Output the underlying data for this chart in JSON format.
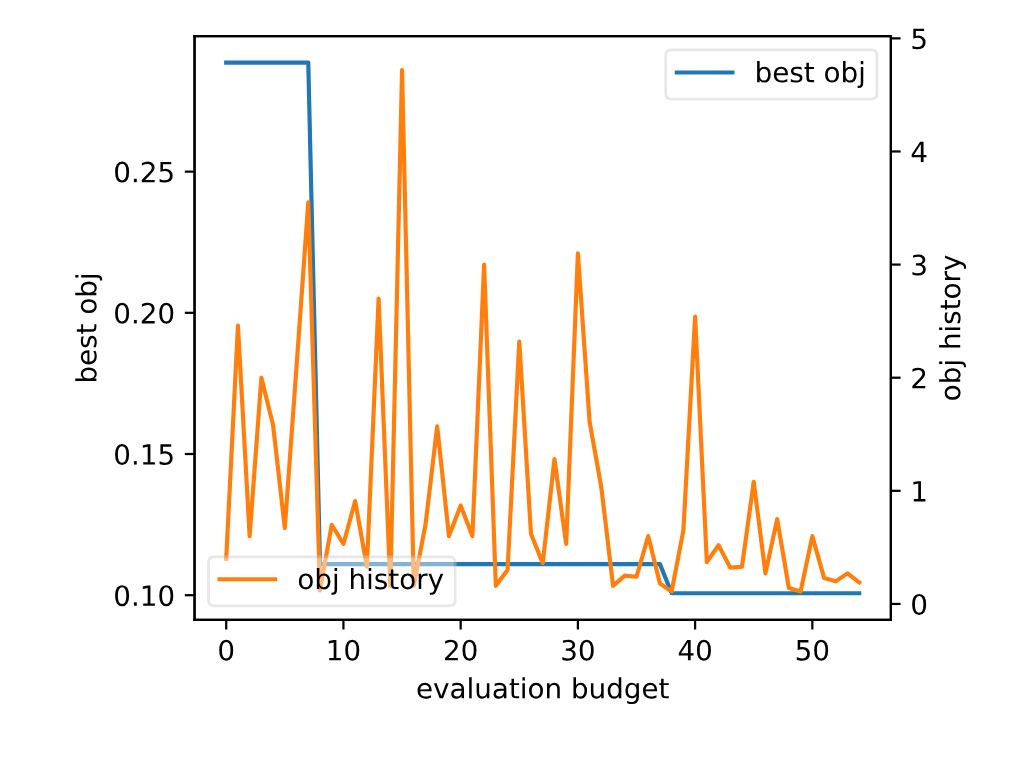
{
  "chart_data": {
    "type": "line",
    "xlabel": "evaluation budget",
    "ylabel": "best obj",
    "y2label": "obj history",
    "x": [
      0,
      1,
      2,
      3,
      4,
      5,
      6,
      7,
      8,
      9,
      10,
      11,
      12,
      13,
      14,
      15,
      16,
      17,
      18,
      19,
      20,
      21,
      22,
      23,
      24,
      25,
      26,
      27,
      28,
      29,
      30,
      31,
      32,
      33,
      34,
      35,
      36,
      37,
      38,
      39,
      40,
      41,
      42,
      43,
      44,
      45,
      46,
      47,
      48,
      49,
      50,
      51,
      52,
      53,
      54
    ],
    "xlim": [
      -2.7,
      56.7
    ],
    "xticks": [
      0,
      10,
      20,
      30,
      40,
      50
    ],
    "ylim": [
      0.0913,
      0.298
    ],
    "yticks": [
      {
        "value": 0.1,
        "label": "0.10"
      },
      0.15,
      {
        "value": 0.2,
        "label": "0.20"
      },
      0.25
    ],
    "y2lim": [
      -0.14,
      5.02
    ],
    "y2ticks": [
      0,
      1,
      2,
      3,
      4,
      5
    ],
    "grid": false,
    "legend": [
      "top right",
      "bottom left"
    ],
    "series": [
      {
        "name": "best obj",
        "color": "#1f77b4",
        "axis": "y",
        "values": [
          0.2886,
          0.2886,
          0.2886,
          0.2886,
          0.2886,
          0.2886,
          0.2886,
          0.2886,
          0.111,
          0.111,
          0.111,
          0.111,
          0.111,
          0.111,
          0.111,
          0.111,
          0.111,
          0.111,
          0.111,
          0.111,
          0.111,
          0.111,
          0.111,
          0.111,
          0.111,
          0.111,
          0.111,
          0.111,
          0.111,
          0.111,
          0.111,
          0.111,
          0.111,
          0.111,
          0.111,
          0.111,
          0.111,
          0.111,
          0.1007,
          0.1007,
          0.1007,
          0.1007,
          0.1007,
          0.1007,
          0.1007,
          0.1007,
          0.1007,
          0.1007,
          0.1007,
          0.1007,
          0.1007,
          0.1007,
          0.1007,
          0.1007,
          0.1007
        ]
      },
      {
        "name": "obj history",
        "color": "#ff7f0e",
        "axis": "y2",
        "values": [
          0.4,
          2.46,
          0.6,
          2.0,
          1.58,
          0.67,
          2.1,
          3.55,
          0.12,
          0.7,
          0.53,
          0.91,
          0.33,
          2.7,
          0.16,
          4.72,
          0.16,
          0.7,
          1.57,
          0.6,
          0.87,
          0.6,
          3.0,
          0.16,
          0.3,
          2.32,
          0.62,
          0.36,
          1.28,
          0.53,
          3.1,
          1.61,
          1.03,
          0.16,
          0.25,
          0.24,
          0.6,
          0.18,
          0.11,
          0.65,
          2.54,
          0.37,
          0.52,
          0.32,
          0.33,
          1.08,
          0.27,
          0.75,
          0.14,
          0.11,
          0.6,
          0.23,
          0.2,
          0.27,
          0.19
        ]
      }
    ]
  }
}
